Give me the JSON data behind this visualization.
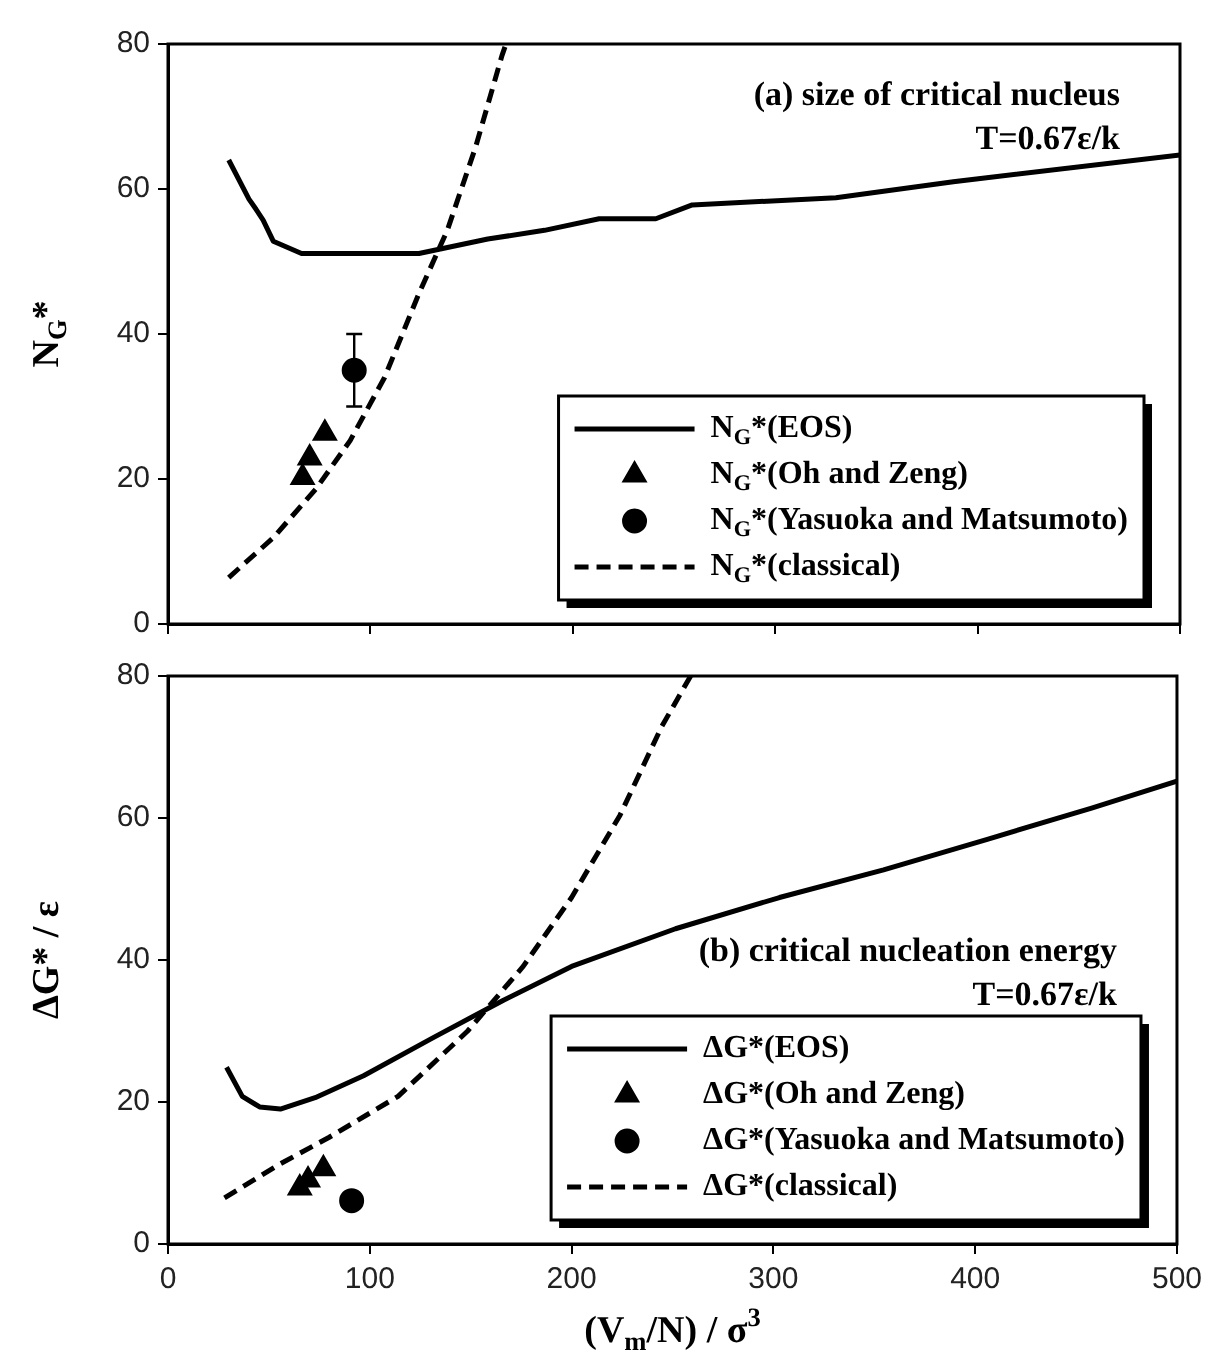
{
  "chart_data": [
    {
      "type": "line",
      "ylabel": "N$_{G}$*",
      "annotations": [
        "(a) size of critical nucleus",
        "T=0.67ε/k"
      ],
      "xlim": [
        0,
        500
      ],
      "xticks": [
        0,
        100,
        200,
        300,
        400,
        500
      ],
      "ylim": [
        0,
        80
      ],
      "yticks": [
        0,
        20,
        40,
        60,
        80
      ],
      "tick_labels": "y",
      "grid": false,
      "legend": "bottom right",
      "series": [
        {
          "name": "N$_{G}$*(EOS)",
          "type": "line",
          "color": "#000000",
          "marker": "none",
          "line_style": "solid",
          "x": [
            30,
            40,
            43.5,
            47,
            52,
            66,
            124,
            141,
            158,
            186,
            213,
            241,
            259,
            330,
            388,
            500
          ],
          "values": [
            64,
            58.6,
            57.2,
            55.7,
            52.8,
            51.1,
            51.1,
            52.1,
            53.1,
            54.3,
            55.9,
            55.9,
            57.8,
            58.8,
            61,
            64.7
          ]
        },
        {
          "name": "N$_{G}$*(Oh and Zeng)",
          "type": "scatter",
          "color": "#000000",
          "marker": "triangle",
          "x": [
            66.5,
            70,
            77.5
          ],
          "values": [
            20.2,
            22.9,
            26.3
          ]
        },
        {
          "name": "N$_{G}$*(Yasuoka and Matsumoto)",
          "type": "scatter",
          "color": "#000000",
          "marker": "circle",
          "x": [
            92
          ],
          "values": [
            35
          ],
          "errors": [
            5
          ]
        },
        {
          "name": "N$_{G}$*(classical)",
          "type": "line",
          "color": "#000000",
          "marker": "none",
          "line_style": "dashed",
          "x": [
            30,
            52,
            73,
            90,
            107,
            124,
            138,
            152,
            165,
            167
          ],
          "values": [
            6.4,
            11.9,
            18.6,
            25.3,
            34,
            45.6,
            54.3,
            65.8,
            78.4,
            80
          ]
        }
      ]
    },
    {
      "type": "line",
      "xlabel": "(V$_{m}$/N) / σ$^{3}$",
      "ylabel": "ΔG* / ε",
      "annotations": [
        "(b) critical nucleation energy",
        "T=0.67ε/k"
      ],
      "xlim": [
        0,
        500
      ],
      "xticks": [
        0,
        100,
        200,
        300,
        400,
        500
      ],
      "ylim": [
        0,
        80
      ],
      "yticks": [
        0,
        20,
        40,
        60,
        80
      ],
      "grid": false,
      "legend": "bottom right",
      "series": [
        {
          "name": "ΔG*(EOS)",
          "type": "line",
          "color": "#000000",
          "marker": "none",
          "line_style": "solid",
          "x": [
            29,
            36.8,
            45.4,
            55.7,
            72.9,
            96.9,
            131,
            166,
            200,
            251.5,
            303,
            354.6,
            406,
            457.7,
            500
          ],
          "values": [
            24.9,
            20.8,
            19.3,
            19,
            20.6,
            23.7,
            29,
            34.3,
            39.1,
            44.4,
            48.8,
            52.7,
            57,
            61.4,
            65.2
          ]
        },
        {
          "name": "ΔG*(Oh and Zeng)",
          "type": "scatter",
          "color": "#000000",
          "marker": "triangle",
          "x": [
            65.3,
            69.4,
            77
          ],
          "values": [
            7.9,
            9,
            10.6
          ]
        },
        {
          "name": "ΔG*(Yasuoka and Matsumoto)",
          "type": "scatter",
          "color": "#000000",
          "marker": "circle",
          "x": [
            91
          ],
          "values": [
            6.1
          ]
        },
        {
          "name": "ΔG*(classical)",
          "type": "line",
          "color": "#000000",
          "marker": "none",
          "line_style": "dashed",
          "x": [
            28,
            55.7,
            79.7,
            114,
            148.5,
            176,
            200,
            224,
            244.7,
            259
          ],
          "values": [
            6.5,
            11.3,
            15,
            20.8,
            30,
            39.1,
            48.8,
            60.4,
            72.9,
            80
          ]
        }
      ]
    }
  ]
}
